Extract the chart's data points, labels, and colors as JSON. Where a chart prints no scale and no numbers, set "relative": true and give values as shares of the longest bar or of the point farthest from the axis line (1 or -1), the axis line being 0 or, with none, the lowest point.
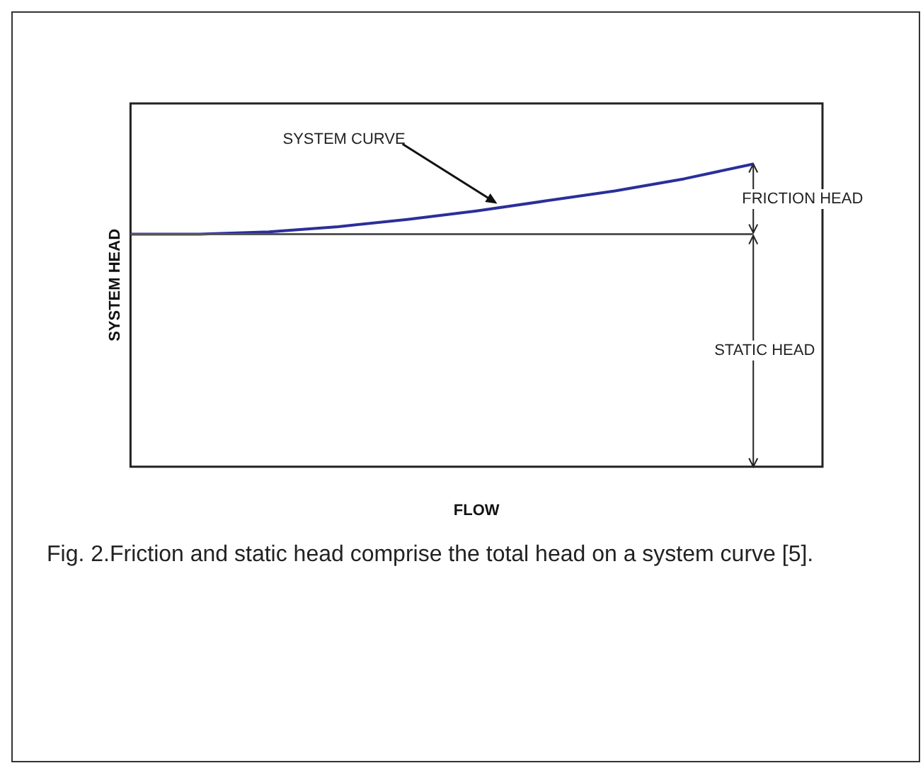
{
  "chart_data": {
    "type": "line",
    "relative": true,
    "xlabel": "FLOW",
    "ylabel": "SYSTEM HEAD",
    "categories": [
      null,
      null,
      null,
      null,
      null,
      null,
      null,
      null,
      null,
      null,
      null
    ],
    "series": [
      {
        "color": "#2b2f9a",
        "values": [
          0.768,
          0.768,
          0.776,
          0.793,
          0.817,
          0.845,
          0.878,
          0.911,
          0.951,
          1.0,
          null
        ]
      }
    ],
    "ref_lines": [
      {
        "axis": "y",
        "value": 0.768,
        "color": "#555555"
      }
    ],
    "annotations": [
      "SYSTEM CURVE",
      "FRICTION HEAD",
      "STATIC HEAD",
      "Fig. 2.Friction and static head comprise the total head on a system curve [5]."
    ],
    "grid": false,
    "legend": false,
    "marker": "none",
    "line_style": "solid"
  }
}
